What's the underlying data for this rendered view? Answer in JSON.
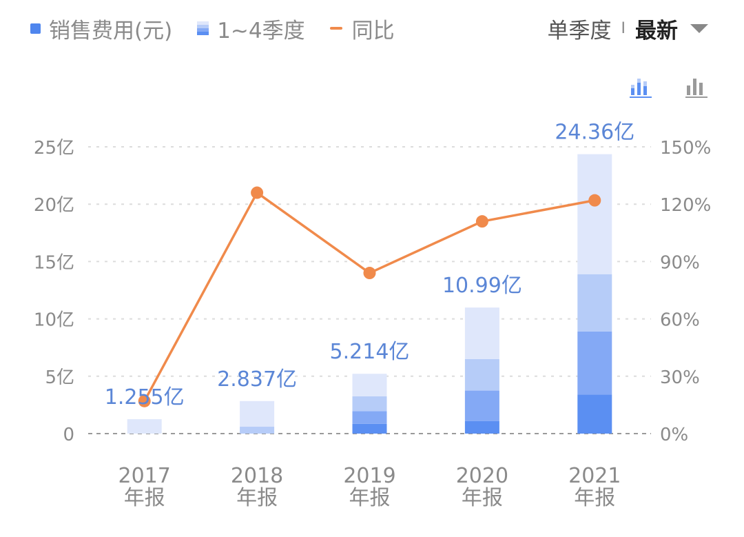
{
  "legend": {
    "items": [
      {
        "label": "销售费用(元)"
      },
      {
        "label": "1~4季度"
      },
      {
        "label": "同比"
      }
    ]
  },
  "period": {
    "label": "单季度",
    "separator": "I",
    "active": "最新"
  },
  "toolbar": {
    "icons": [
      "stacked-bar-icon",
      "bar-chart-icon"
    ]
  },
  "colors": {
    "q1": "#5b8ff2",
    "q2": "#84a9f5",
    "q3": "#b6ccf8",
    "q4": "#dfe7fb",
    "line": "#f08a4b",
    "label": "#5b86d6",
    "axis_text": "#8a8a8a",
    "grid": "#dcdcdc"
  },
  "chart_data": {
    "type": "bar",
    "stacked": true,
    "categories": [
      "2017\n年报",
      "2018\n年报",
      "2019\n年报",
      "2020\n年报",
      "2021\n年报"
    ],
    "series": [
      {
        "name": "1~4季度",
        "stack_segments": [
          [
            1.255
          ],
          [
            0.6,
            2.237
          ],
          [
            0.85,
            1.1,
            1.3,
            1.964
          ],
          [
            1.1,
            2.65,
            2.75,
            4.49
          ],
          [
            3.4,
            5.5,
            5.0,
            10.46
          ]
        ]
      }
    ],
    "totals": [
      1.255,
      2.837,
      5.214,
      10.99,
      24.36
    ],
    "total_labels": [
      "1.255亿",
      "2.837亿",
      "5.214亿",
      "10.99亿",
      "24.36亿"
    ],
    "line": {
      "name": "同比",
      "values": [
        17,
        126,
        84,
        111,
        122
      ]
    },
    "y_left": {
      "ticks": [
        "0",
        "5亿",
        "10亿",
        "15亿",
        "20亿",
        "25亿"
      ],
      "range": [
        0,
        25
      ],
      "unit": "亿"
    },
    "y_right": {
      "ticks": [
        "0%",
        "30%",
        "60%",
        "90%",
        "120%",
        "150%"
      ],
      "range": [
        0,
        150
      ]
    },
    "grid": true
  }
}
